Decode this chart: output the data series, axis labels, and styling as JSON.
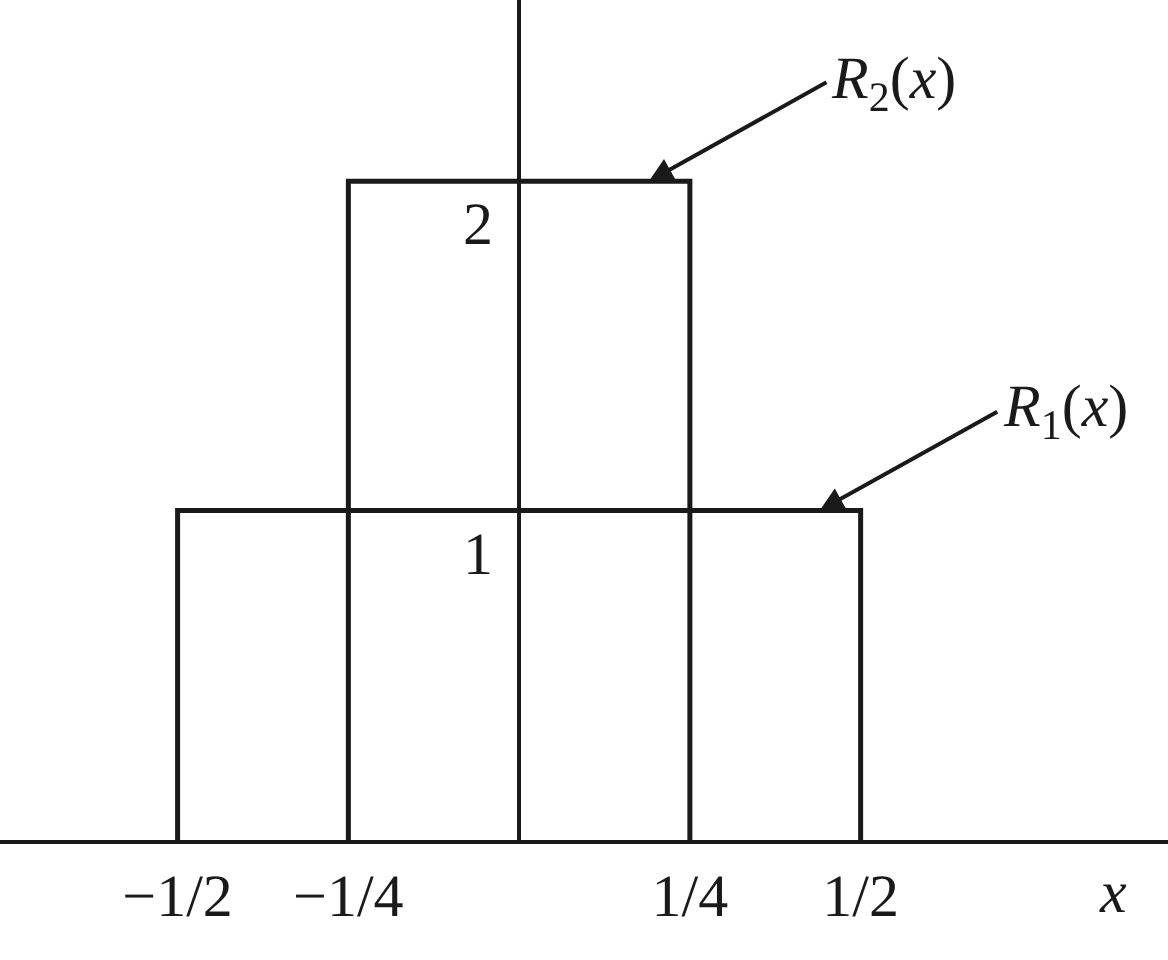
{
  "chart_data": {
    "type": "line",
    "xlabel": "x",
    "series": [
      {
        "name": "R$_{1}$(x)",
        "color": "#1a1a1a",
        "x": [
          -0.5,
          -0.5,
          0.5,
          0.5
        ],
        "values": [
          0,
          1,
          1,
          0
        ]
      },
      {
        "name": "R$_{2}$(x)",
        "color": "#1a1a1a",
        "x": [
          -0.25,
          -0.25,
          0.25,
          0.25
        ],
        "values": [
          0,
          2,
          2,
          0
        ]
      }
    ],
    "xlim": [
      -0.76,
      0.95
    ],
    "ylim": [
      0,
      2.55
    ],
    "xticks": [
      {
        "value": -0.5,
        "label": "−1/2"
      },
      {
        "value": -0.25,
        "label": "−1/4"
      },
      {
        "value": 0.25,
        "label": "1/4"
      },
      {
        "value": 0.5,
        "label": "1/2"
      }
    ],
    "yticks": [
      1,
      2
    ],
    "legend": false,
    "marker": "none",
    "line_style": "solid"
  }
}
